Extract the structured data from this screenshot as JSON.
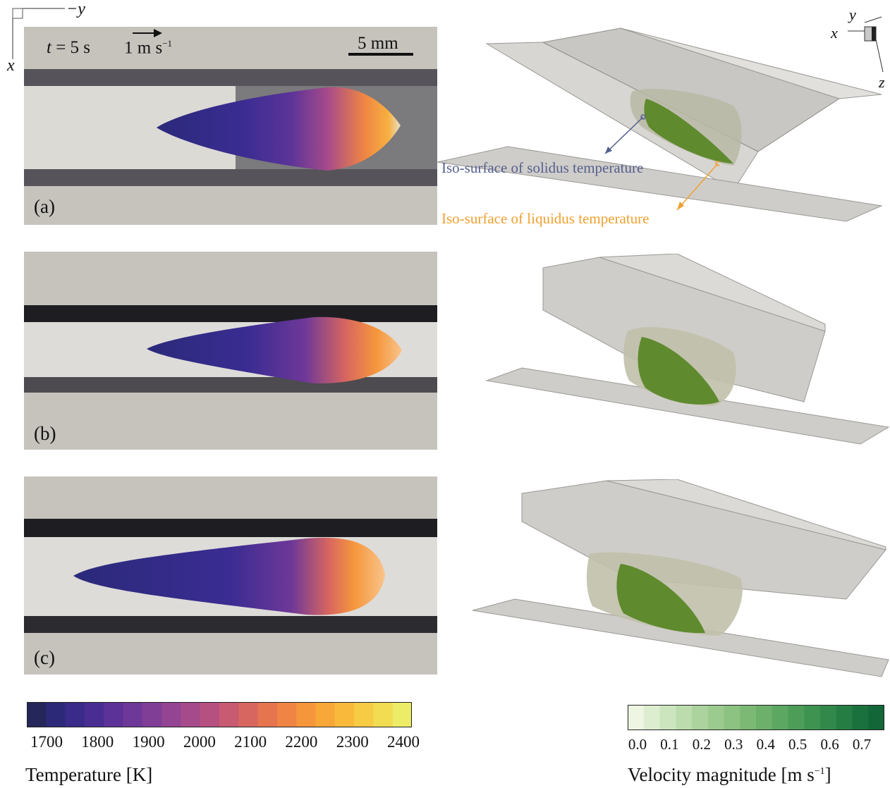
{
  "axes": {
    "x_label": "x",
    "neg_y_label": "−y",
    "tri_x": "x",
    "tri_y": "y",
    "tri_z": "z"
  },
  "panel_a": {
    "time_t": "t",
    "time_rest": " = 5 s",
    "vector_ref": "1 m s",
    "vector_ref_exp": "−1",
    "scale_bar": "5 mm",
    "tag": "(a)"
  },
  "panel_b": {
    "tag": "(b)"
  },
  "panel_c": {
    "tag": "(c)"
  },
  "annotations": {
    "solidus": "Iso-surface of solidus temperature",
    "liquidus": "Iso-surface of liquidus temperature",
    "solidus_color": "#55608f",
    "liquidus_color": "#f0a030"
  },
  "temperature_colorbar": {
    "title": "Temperature [K]",
    "ticks": [
      "1700",
      "1800",
      "1900",
      "2000",
      "2100",
      "2200",
      "2300",
      "2400"
    ],
    "colors": [
      "#252659",
      "#2c2a78",
      "#3a2a8a",
      "#4a2d93",
      "#5c3298",
      "#6e3898",
      "#803e96",
      "#934492",
      "#a54a8b",
      "#b65081",
      "#c85a72",
      "#d86660",
      "#e6744f",
      "#ef8444",
      "#f5963c",
      "#f8a839",
      "#f9ba3c",
      "#f7cb44",
      "#f2dc52",
      "#ecec66"
    ]
  },
  "velocity_colorbar": {
    "title": "Velocity magnitude [m s",
    "title_exp": "−1",
    "title_end": "]",
    "ticks": [
      "0.0",
      "0.1",
      "0.2",
      "0.3",
      "0.4",
      "0.5",
      "0.6",
      "0.7"
    ],
    "colors": [
      "#eef6e3",
      "#dcedd0",
      "#cce5bf",
      "#bcdcae",
      "#acd39e",
      "#9ccb8f",
      "#8cc282",
      "#7cb975",
      "#6cb06b",
      "#5ca762",
      "#4d9d59",
      "#3f9351",
      "#32884a",
      "#267d43",
      "#1b713d",
      "#126637"
    ]
  }
}
